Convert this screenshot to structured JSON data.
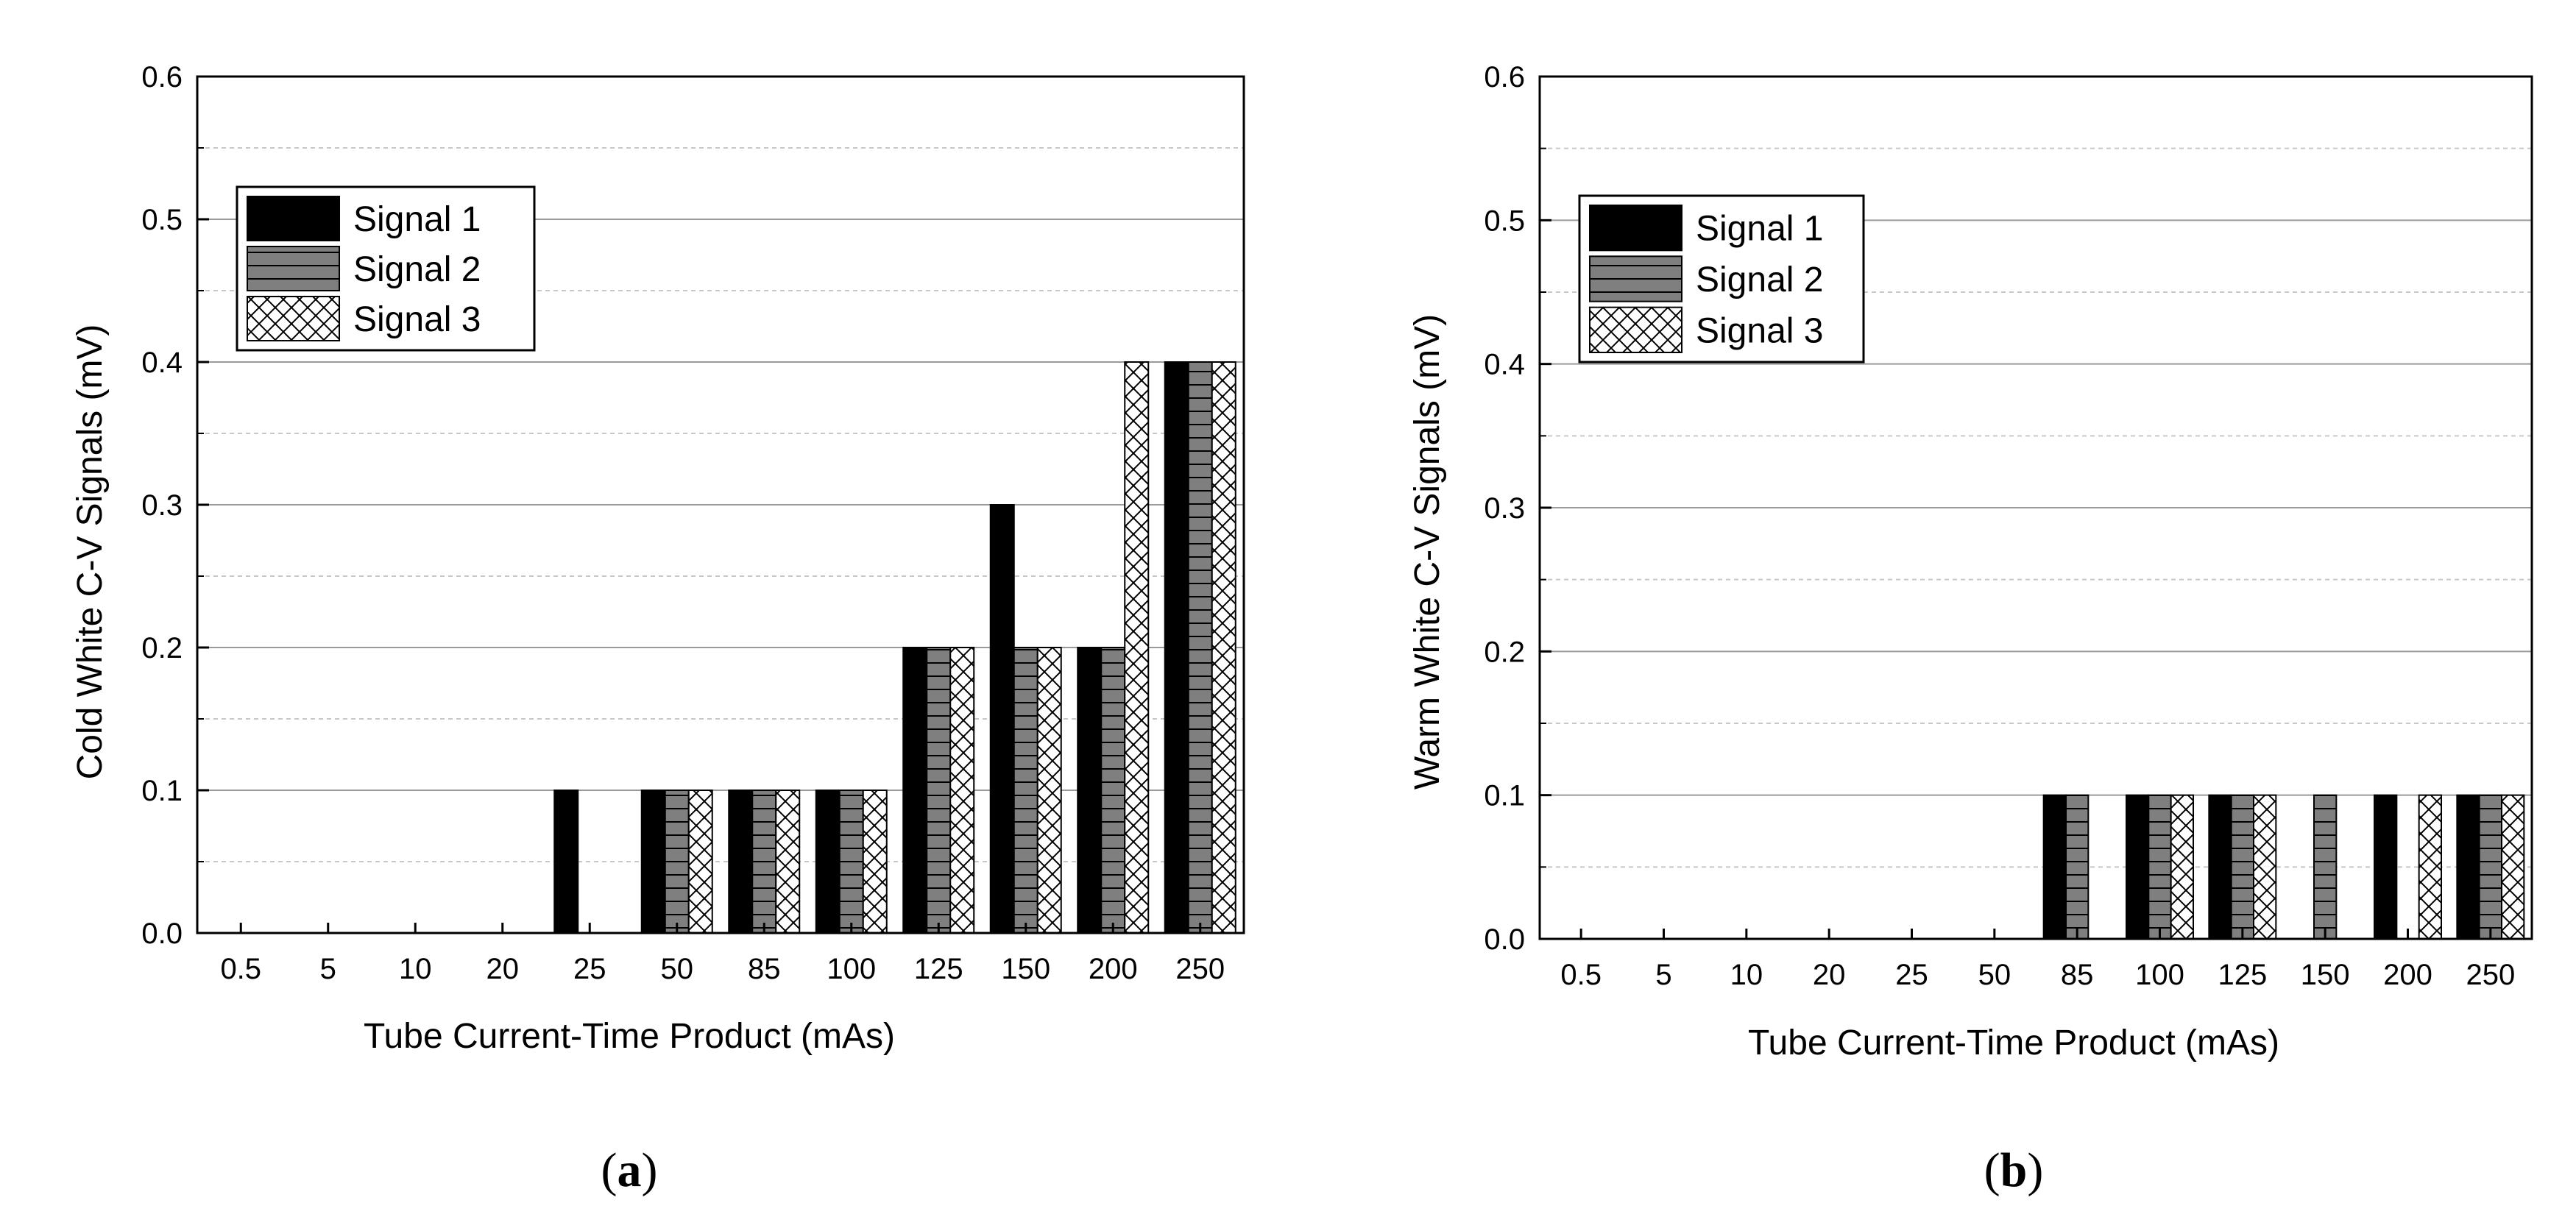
{
  "chart_data": [
    {
      "type": "bar",
      "caption_letter": "a",
      "xlabel": "Tube Current-Time Product (mAs)",
      "ylabel": "Cold White C-V Signals (mV)",
      "ylim": [
        0,
        0.6
      ],
      "y_major_ticks": [
        0.0,
        0.1,
        0.2,
        0.3,
        0.4,
        0.5,
        0.6
      ],
      "y_tick_labels": [
        "0.0",
        "0.1",
        "0.2",
        "0.3",
        "0.4",
        "0.5",
        "0.6"
      ],
      "y_minor_ticks": [
        0.05,
        0.15,
        0.25,
        0.35,
        0.45,
        0.55
      ],
      "grid": true,
      "legend_position": "upper-left",
      "categories": [
        "0.5",
        "5",
        "10",
        "20",
        "25",
        "50",
        "85",
        "100",
        "125",
        "150",
        "200",
        "250"
      ],
      "series": [
        {
          "name": "Signal 1",
          "pattern": "solid",
          "values": [
            0,
            0,
            0,
            0,
            0.1,
            0.1,
            0.1,
            0.1,
            0.2,
            0.3,
            0.2,
            0.4
          ]
        },
        {
          "name": "Signal 2",
          "pattern": "horizontal-lines",
          "values": [
            0,
            0,
            0,
            0,
            0,
            0.1,
            0.1,
            0.1,
            0.2,
            0.2,
            0.2,
            0.4
          ]
        },
        {
          "name": "Signal 3",
          "pattern": "crosshatch",
          "values": [
            0,
            0,
            0,
            0,
            0,
            0.1,
            0.1,
            0.1,
            0.2,
            0.2,
            0.4,
            0.4
          ]
        }
      ]
    },
    {
      "type": "bar",
      "caption_letter": "b",
      "xlabel": "Tube Current-Time Product (mAs)",
      "ylabel": "Warm White C-V Signals (mV)",
      "ylim": [
        0,
        0.6
      ],
      "y_major_ticks": [
        0.0,
        0.1,
        0.2,
        0.3,
        0.4,
        0.5,
        0.6
      ],
      "y_tick_labels": [
        "0.0",
        "0.1",
        "0.2",
        "0.3",
        "0.4",
        "0.5",
        "0.6"
      ],
      "y_minor_ticks": [
        0.05,
        0.15,
        0.25,
        0.35,
        0.45,
        0.55
      ],
      "grid": true,
      "legend_position": "upper-left",
      "categories": [
        "0.5",
        "5",
        "10",
        "20",
        "25",
        "50",
        "85",
        "100",
        "125",
        "150",
        "200",
        "250"
      ],
      "series": [
        {
          "name": "Signal 1",
          "pattern": "solid",
          "values": [
            0,
            0,
            0,
            0,
            0,
            0,
            0.1,
            0.1,
            0.1,
            0,
            0.1,
            0.1
          ]
        },
        {
          "name": "Signal 2",
          "pattern": "horizontal-lines",
          "values": [
            0,
            0,
            0,
            0,
            0,
            0,
            0.1,
            0.1,
            0.1,
            0.1,
            0,
            0.1
          ]
        },
        {
          "name": "Signal 3",
          "pattern": "crosshatch",
          "values": [
            0,
            0,
            0,
            0,
            0,
            0,
            0,
            0.1,
            0.1,
            0,
            0.1,
            0.1
          ]
        }
      ]
    }
  ],
  "colors": {
    "bar_border": "#000000",
    "signal1_fill": "#000000",
    "signal2_fill": "#7f7f7f",
    "signal3_fill": "#ffffff",
    "major_grid": "#9a9a9a",
    "minor_grid": "#c8c8c8",
    "axis": "#000000"
  }
}
